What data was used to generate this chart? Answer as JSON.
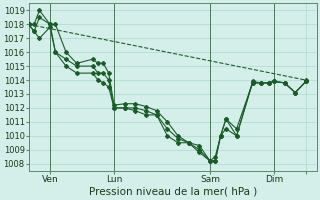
{
  "title": "",
  "xlabel": "Pression niveau de la mer( hPa )",
  "ylabel": "",
  "background_color": "#d4eeea",
  "grid_color": "#b0d8d0",
  "line_color": "#1a5c28",
  "ylim": [
    1007.5,
    1019.5
  ],
  "yticks": [
    1008,
    1009,
    1010,
    1011,
    1012,
    1013,
    1014,
    1015,
    1016,
    1017,
    1018,
    1019
  ],
  "xlim": [
    0,
    216
  ],
  "xtick_positions": [
    16,
    64,
    136,
    184,
    208
  ],
  "xtick_labels": [
    "Ven",
    "Lun",
    "Sam",
    "Dim",
    ""
  ],
  "vlines": [
    16,
    64,
    136,
    184
  ],
  "series": [
    {
      "x": [
        0,
        4,
        8,
        16,
        20,
        28,
        36,
        48,
        52,
        56,
        60,
        64,
        72,
        80,
        88,
        96,
        104,
        112,
        120,
        128,
        136,
        140,
        144,
        148,
        156,
        168,
        174,
        180,
        184,
        192,
        200,
        208
      ],
      "y": [
        1018.0,
        1018.0,
        1019.0,
        1018.0,
        1018.0,
        1016.0,
        1015.2,
        1015.5,
        1015.2,
        1015.2,
        1014.5,
        1012.2,
        1012.3,
        1012.3,
        1012.1,
        1011.8,
        1011.0,
        1010.0,
        1009.5,
        1009.3,
        1008.2,
        1008.5,
        1010.0,
        1011.2,
        1010.0,
        1013.9,
        1013.8,
        1013.8,
        1013.9,
        1013.8,
        1013.1,
        1013.9
      ]
    },
    {
      "x": [
        0,
        4,
        8,
        16,
        20,
        28,
        36,
        48,
        52,
        56,
        60,
        64,
        72,
        80,
        88,
        96,
        104,
        112,
        120,
        128,
        136,
        140,
        144,
        148,
        156,
        168,
        174,
        180,
        184,
        192,
        200,
        208
      ],
      "y": [
        1018.0,
        1017.5,
        1018.5,
        1018.0,
        1016.0,
        1015.5,
        1015.0,
        1015.0,
        1014.5,
        1014.5,
        1014.0,
        1012.0,
        1012.0,
        1012.0,
        1011.8,
        1011.5,
        1010.5,
        1009.8,
        1009.5,
        1009.0,
        1008.2,
        1008.2,
        1010.0,
        1010.5,
        1010.0,
        1013.8,
        1013.8,
        1013.8,
        1013.9,
        1013.8,
        1013.1,
        1013.9
      ]
    },
    {
      "x": [
        0,
        4,
        8,
        16,
        20,
        28,
        36,
        48,
        52,
        56,
        60,
        64,
        72,
        80,
        88,
        96,
        104,
        112,
        120,
        128,
        136,
        140,
        144,
        148,
        156,
        168,
        174,
        180,
        184,
        192,
        200,
        208
      ],
      "y": [
        1018.0,
        1017.5,
        1017.0,
        1017.8,
        1016.0,
        1015.0,
        1014.5,
        1014.5,
        1014.0,
        1013.8,
        1013.5,
        1012.0,
        1012.0,
        1011.8,
        1011.5,
        1011.5,
        1010.0,
        1009.5,
        1009.5,
        1008.8,
        1008.2,
        1008.2,
        1010.0,
        1011.2,
        1010.5,
        1013.8,
        1013.8,
        1013.8,
        1013.9,
        1013.8,
        1013.1,
        1013.9
      ]
    },
    {
      "x": [
        0,
        208
      ],
      "y": [
        1018.0,
        1014.0
      ],
      "dashed": true
    }
  ],
  "figsize": [
    3.2,
    2.0
  ],
  "dpi": 100
}
